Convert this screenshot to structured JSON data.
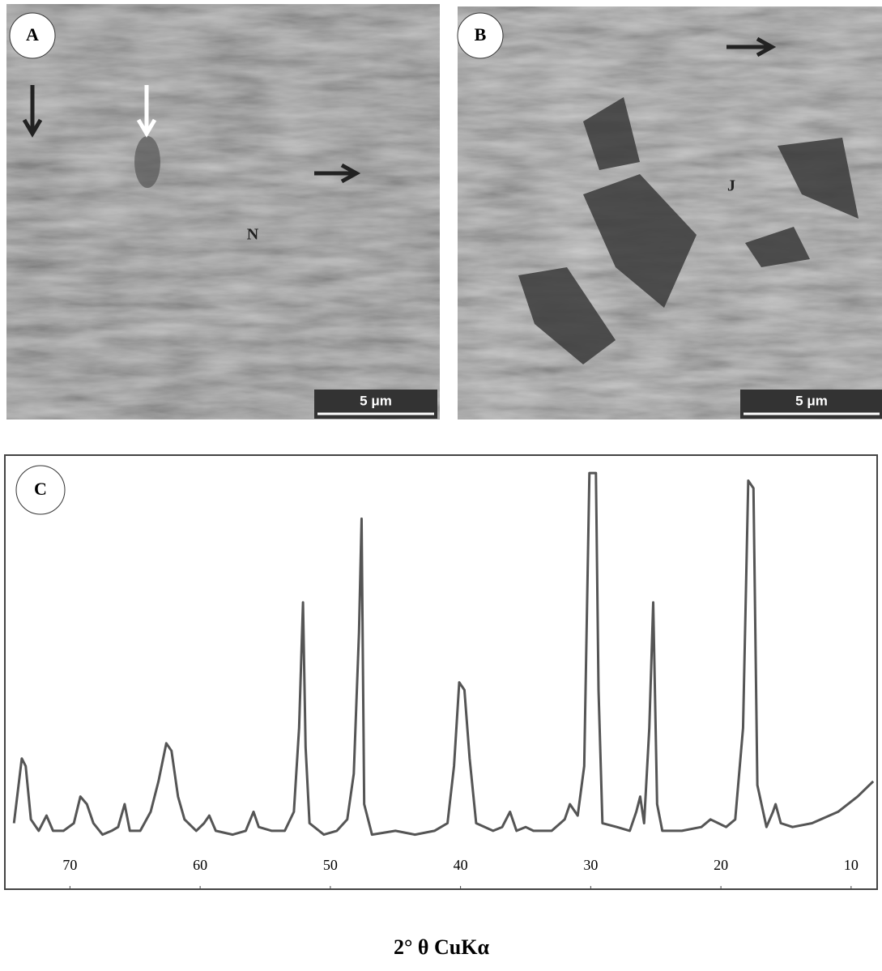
{
  "panels": [
    {
      "label": "A",
      "annotation": "N",
      "scale_bar": "5 μm"
    },
    {
      "label": "B",
      "annotation": "J",
      "scale_bar": "5 μm"
    }
  ],
  "chart_data": {
    "type": "line",
    "label": "C",
    "xlabel": "2° θ CuKα",
    "xlim": [
      75,
      8
    ],
    "ylim": [
      0,
      100
    ],
    "xticks": [
      70,
      60,
      50,
      40,
      30,
      20,
      10
    ],
    "series": [
      {
        "color": "#555555",
        "x": [
          74.3,
          73.7,
          73.4,
          73.0,
          72.4,
          71.8,
          71.3,
          70.5,
          69.7,
          69.2,
          68.7,
          68.2,
          67.5,
          66.8,
          66.3,
          65.8,
          65.4,
          64.6,
          63.8,
          63.2,
          62.6,
          62.2,
          61.7,
          61.2,
          60.3,
          59.7,
          59.3,
          58.8,
          57.5,
          56.5,
          55.9,
          55.5,
          54.5,
          53.5,
          52.8,
          52.4,
          52.1,
          51.9,
          51.6,
          50.5,
          49.5,
          48.7,
          48.2,
          47.8,
          47.6,
          47.4,
          46.8,
          45.0,
          43.5,
          42.0,
          41.0,
          40.5,
          40.1,
          39.7,
          39.3,
          38.8,
          37.5,
          36.8,
          36.2,
          35.7,
          35.0,
          34.4,
          33.0,
          32.0,
          31.6,
          31.0,
          30.5,
          30.1,
          29.6,
          29.4,
          29.1,
          28.0,
          27.0,
          26.5,
          26.2,
          25.9,
          25.5,
          25.2,
          24.9,
          24.5,
          23.0,
          21.5,
          20.8,
          20.2,
          19.6,
          18.9,
          18.3,
          17.9,
          17.5,
          17.2,
          16.5,
          16.0,
          15.8,
          15.4,
          14.5,
          13.0,
          11.0,
          9.5,
          8.3
        ],
        "values": [
          5,
          22,
          20,
          6,
          3,
          7,
          3,
          3,
          5,
          12,
          10,
          5,
          2,
          3,
          4,
          10,
          3,
          3,
          8,
          16,
          26,
          24,
          12,
          6,
          3,
          5,
          7,
          3,
          2,
          3,
          8,
          4,
          3,
          3,
          8,
          30,
          63,
          25,
          5,
          2,
          3,
          6,
          18,
          55,
          85,
          10,
          2,
          3,
          2,
          3,
          5,
          20,
          42,
          40,
          22,
          5,
          3,
          4,
          8,
          3,
          4,
          3,
          3,
          6,
          10,
          7,
          20,
          97,
          97,
          40,
          5,
          4,
          3,
          8,
          12,
          5,
          30,
          63,
          10,
          3,
          3,
          4,
          6,
          5,
          4,
          6,
          30,
          95,
          93,
          15,
          4,
          8,
          10,
          5,
          4,
          5,
          8,
          12,
          16
        ]
      }
    ]
  }
}
